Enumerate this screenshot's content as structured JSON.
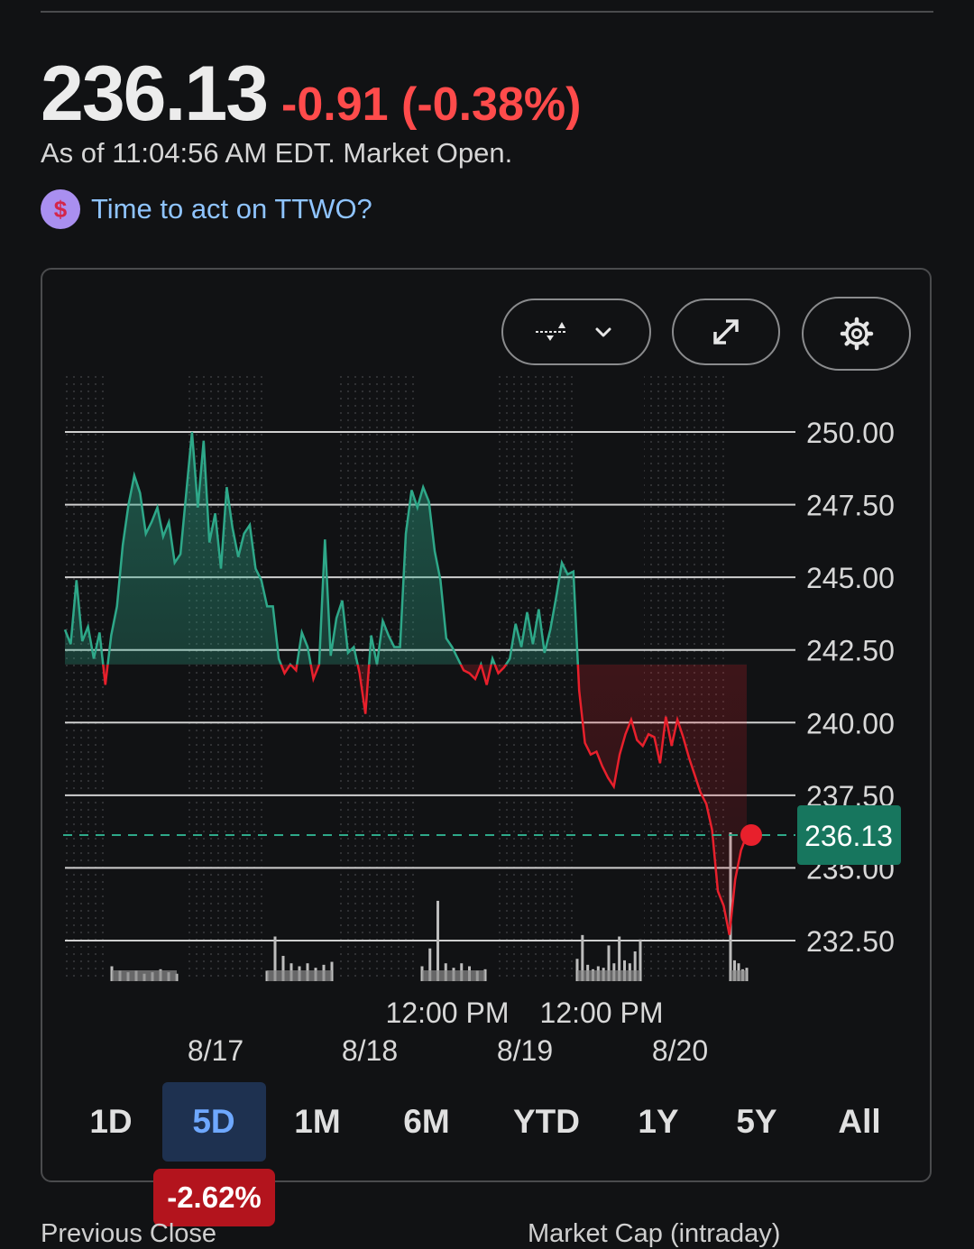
{
  "quote": {
    "price": "236.13",
    "change": "-0.91 (-0.38%)",
    "as_of": "As of 11:04:56 AM EDT. Market Open."
  },
  "promo": {
    "icon": "dollar-sign-icon",
    "symbol": "$",
    "text": "Time to act on TTWO?"
  },
  "toolbar": {
    "chart_type_icon": "chart-type-icon",
    "expand_icon": "expand-icon",
    "settings_icon": "gear-icon"
  },
  "chart_data": {
    "type": "area",
    "title": "",
    "ylabel": "",
    "xlabel": "",
    "ylim": [
      231.5,
      251
    ],
    "y_ticks": [
      "250.00",
      "247.50",
      "245.00",
      "242.50",
      "240.00",
      "237.50",
      "235.00",
      "232.50"
    ],
    "y_tick_values": [
      250,
      247.5,
      245,
      242.5,
      240,
      237.5,
      235,
      232.5
    ],
    "x_ticks": [
      "8/17",
      "8/18",
      "8/19",
      "8/20"
    ],
    "x_time_labels": [
      "12:00 PM",
      "12:00 PM"
    ],
    "baseline": 242.0,
    "current_price": 236.13,
    "current_price_label": "236.13",
    "up_color": "#2ea889",
    "down_color": "#e8202c",
    "series": [
      {
        "values": [
          243.2,
          242.7,
          244.9,
          242.8,
          243.3,
          242.2,
          243.1,
          241.3,
          243.0,
          244.0,
          246.1,
          247.5,
          248.5,
          247.9,
          246.5,
          246.9,
          247.4,
          246.4,
          246.9,
          245.5,
          245.8,
          247.9,
          250.0,
          247.4,
          249.7,
          246.2,
          247.2,
          245.3,
          248.1,
          246.7,
          245.7,
          246.5,
          246.8,
          245.3,
          244.9,
          244.0,
          244.0,
          242.2,
          241.7,
          242.0,
          241.8,
          243.1,
          242.6,
          241.5,
          242.0,
          246.3,
          242.3,
          243.6,
          244.2,
          242.4,
          242.6,
          241.7,
          240.3,
          243.0,
          242.0,
          243.5,
          243.0,
          242.6,
          242.6,
          246.5,
          248.0,
          247.4,
          248.1,
          247.6,
          245.9,
          244.9,
          242.9,
          242.6,
          242.2,
          241.8,
          241.7,
          241.5,
          242.0,
          241.3,
          242.2,
          241.7,
          241.9,
          242.2,
          243.4,
          242.6,
          243.8,
          242.7,
          243.9,
          242.4,
          243.2,
          244.3,
          245.5,
          245.1,
          245.2,
          241.1,
          239.3,
          238.9,
          239.0,
          238.5,
          238.1,
          237.8,
          238.9,
          239.6,
          240.1,
          239.4,
          239.2,
          239.6,
          239.5,
          238.6,
          240.2,
          239.2,
          240.1,
          239.5,
          238.8,
          238.2,
          237.6,
          237.2,
          236.3,
          234.2,
          233.7,
          232.7,
          234.6,
          235.6,
          236.13
        ]
      }
    ],
    "volume": [
      0.1,
      0.07,
      0.06,
      0.07,
      0.05,
      0.06,
      0.08,
      0.06,
      0.05,
      0.07,
      0.3,
      0.17,
      0.12,
      0.1,
      0.12,
      0.09,
      0.11,
      0.13,
      0.1,
      0.22,
      0.54,
      0.12,
      0.09,
      0.12,
      0.1,
      0.07,
      0.08,
      0.15,
      0.31,
      0.11,
      0.08,
      0.1,
      0.09,
      0.24,
      0.12,
      0.3,
      0.14,
      0.12,
      0.2,
      0.28,
      1.0,
      0.14,
      0.12,
      0.08,
      0.09
    ]
  },
  "ranges": [
    "1D",
    "5D",
    "1M",
    "6M",
    "YTD",
    "1Y",
    "5Y",
    "All"
  ],
  "active_range": "5D",
  "range_change": "-2.62%",
  "bottom": {
    "left_label": "Previous Close",
    "right_label": "Market Cap (intraday)"
  }
}
